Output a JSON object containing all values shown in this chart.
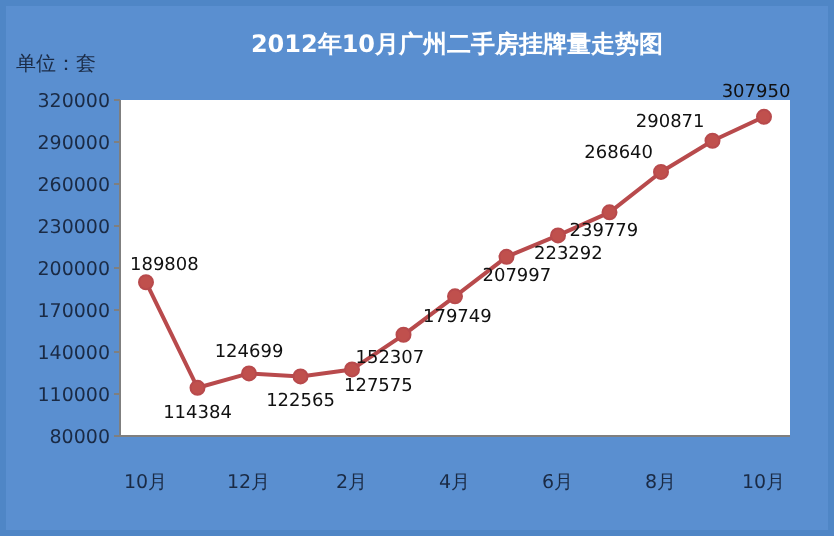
{
  "chart_data": {
    "type": "line",
    "title": "2012年10月广州二手房挂牌量走势图",
    "ylabel": "单位：套",
    "categories": [
      "10月",
      null,
      "12月",
      null,
      "2月",
      null,
      "4月",
      null,
      "6月",
      null,
      "8月",
      null,
      "10月"
    ],
    "series": [
      {
        "color": "#b84a4c",
        "values": [
          189808,
          114384,
          124699,
          122565,
          127575,
          152307,
          179749,
          207997,
          223292,
          239779,
          268640,
          290871,
          307950
        ]
      }
    ],
    "ylim": [
      80000,
      320000
    ],
    "yticks": [
      80000,
      110000,
      140000,
      170000,
      200000,
      230000,
      260000,
      290000,
      320000
    ],
    "data_labels": true,
    "marker": "circle",
    "line_style": "solid"
  }
}
